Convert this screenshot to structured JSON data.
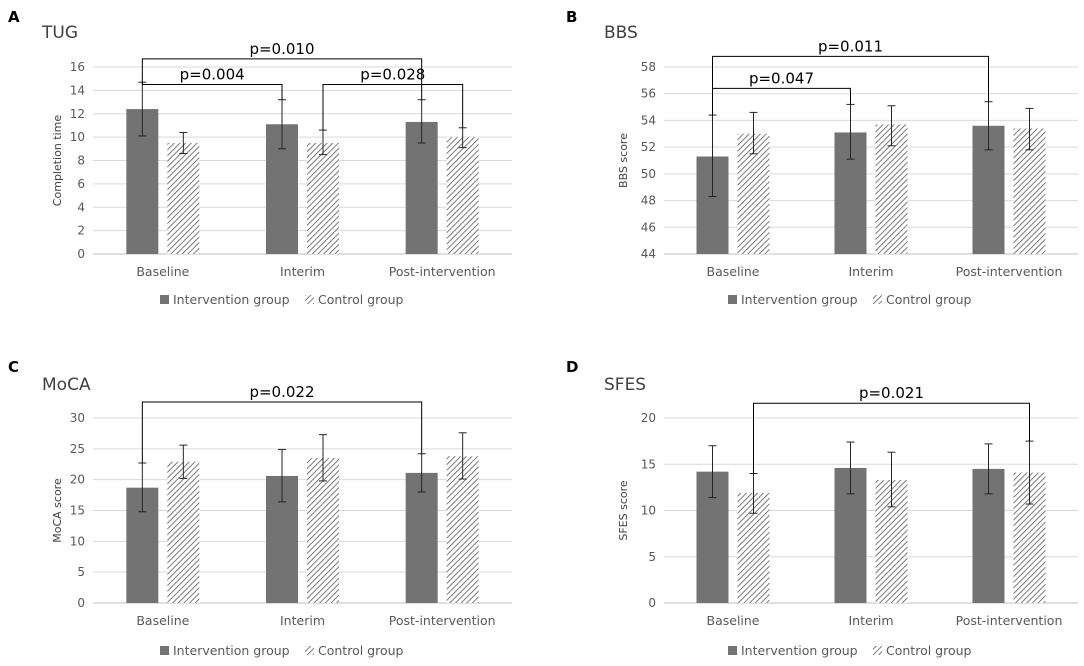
{
  "colors": {
    "intervention": "#737373",
    "control_hatch": "#595959",
    "grid": "#d9d9d9",
    "axis": "#bfbfbf",
    "bracket": "#000000",
    "error": "#262626"
  },
  "legend": {
    "intervention": "Intervention group",
    "control": "Control group"
  },
  "chart_data": [
    {
      "panel": "A",
      "type": "bar",
      "title": "TUG",
      "ylabel": "Completion time",
      "xlabel": "",
      "ylim": [
        0,
        16
      ],
      "yticks": [
        0,
        2,
        4,
        6,
        8,
        10,
        12,
        14,
        16
      ],
      "grid": true,
      "legend_position": "bottom",
      "categories": [
        "Baseline",
        "Interim",
        "Post-intervention"
      ],
      "series": [
        {
          "name": "Intervention group",
          "values": [
            12.4,
            11.1,
            11.3
          ],
          "err_low": [
            10.1,
            9.0,
            9.5
          ],
          "err_high": [
            14.7,
            13.2,
            13.2
          ]
        },
        {
          "name": "Control group",
          "values": [
            9.5,
            9.5,
            10.0
          ],
          "err_low": [
            8.6,
            8.5,
            9.1
          ],
          "err_high": [
            10.4,
            10.6,
            10.8
          ]
        }
      ],
      "annotations": [
        {
          "text": "p=0.010",
          "from": [
            0,
            0
          ],
          "to": [
            2,
            0
          ],
          "level": 16.7
        },
        {
          "text": "p=0.004",
          "from": [
            0,
            0
          ],
          "to": [
            1,
            0
          ],
          "level": 14.5
        },
        {
          "text": "p=0.028",
          "from": [
            1,
            1
          ],
          "to": [
            2,
            1
          ],
          "level": 14.5
        }
      ]
    },
    {
      "panel": "B",
      "type": "bar",
      "title": "BBS",
      "ylabel": "BBS score",
      "xlabel": "",
      "ylim": [
        44,
        58
      ],
      "yticks": [
        44,
        46,
        48,
        50,
        52,
        54,
        56,
        58
      ],
      "grid": true,
      "legend_position": "bottom",
      "categories": [
        "Baseline",
        "Interim",
        "Post-intervention"
      ],
      "series": [
        {
          "name": "Intervention group",
          "values": [
            51.3,
            53.1,
            53.6
          ],
          "err_low": [
            48.3,
            51.1,
            51.8
          ],
          "err_high": [
            54.4,
            55.2,
            55.4
          ]
        },
        {
          "name": "Control group",
          "values": [
            53.0,
            53.7,
            53.4
          ],
          "err_low": [
            51.5,
            52.1,
            51.8
          ],
          "err_high": [
            54.6,
            55.1,
            54.9
          ]
        }
      ],
      "annotations": [
        {
          "text": "p=0.011",
          "from": [
            0,
            0
          ],
          "to": [
            2,
            0
          ],
          "level": 58.8
        },
        {
          "text": "p=0.047",
          "from": [
            0,
            0
          ],
          "to": [
            1,
            0
          ],
          "level": 56.4
        }
      ]
    },
    {
      "panel": "C",
      "type": "bar",
      "title": "MoCA",
      "ylabel": "MoCA score",
      "xlabel": "",
      "ylim": [
        0,
        30
      ],
      "yticks": [
        0,
        5,
        10,
        15,
        20,
        25,
        30
      ],
      "grid": true,
      "legend_position": "bottom",
      "categories": [
        "Baseline",
        "Interim",
        "Post-intervention"
      ],
      "series": [
        {
          "name": "Intervention group",
          "values": [
            18.7,
            20.6,
            21.1
          ],
          "err_low": [
            14.8,
            16.4,
            18.0
          ],
          "err_high": [
            22.7,
            24.9,
            24.2
          ]
        },
        {
          "name": "Control group",
          "values": [
            22.9,
            23.5,
            23.8
          ],
          "err_low": [
            20.2,
            19.8,
            20.1
          ],
          "err_high": [
            25.6,
            27.3,
            27.6
          ]
        }
      ],
      "annotations": [
        {
          "text": "p=0.022",
          "from": [
            0,
            0
          ],
          "to": [
            2,
            0
          ],
          "level": 32.6
        }
      ]
    },
    {
      "panel": "D",
      "type": "bar",
      "title": "SFES",
      "ylabel": "SFES score",
      "xlabel": "",
      "ylim": [
        0,
        20
      ],
      "yticks": [
        0,
        5,
        10,
        15,
        20
      ],
      "grid": true,
      "legend_position": "bottom",
      "categories": [
        "Baseline",
        "Interim",
        "Post-intervention"
      ],
      "series": [
        {
          "name": "Intervention group",
          "values": [
            14.2,
            14.6,
            14.5
          ],
          "err_low": [
            11.4,
            11.8,
            11.8
          ],
          "err_high": [
            17.0,
            17.4,
            17.2
          ]
        },
        {
          "name": "Control group",
          "values": [
            11.9,
            13.3,
            14.1
          ],
          "err_low": [
            9.7,
            10.4,
            10.7
          ],
          "err_high": [
            14.0,
            16.3,
            17.5
          ]
        }
      ],
      "annotations": [
        {
          "text": "p=0.021",
          "from": [
            0,
            1
          ],
          "to": [
            2,
            1
          ],
          "level": 21.6
        }
      ]
    }
  ]
}
